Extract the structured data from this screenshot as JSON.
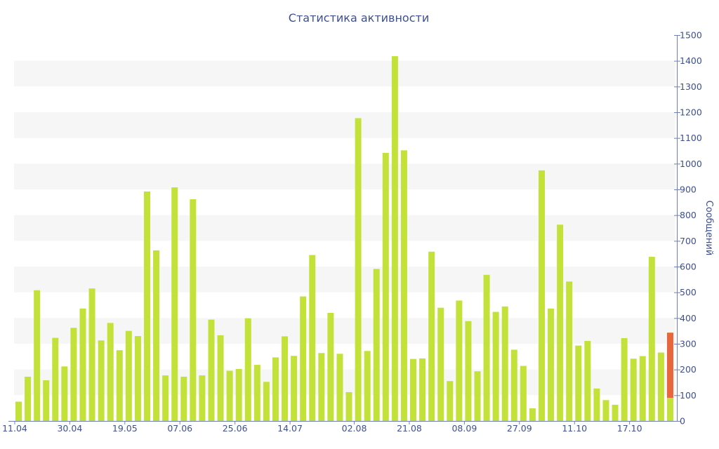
{
  "chart_data": {
    "type": "bar",
    "title": "Статистика активности",
    "ylabel": "Сообщений",
    "xlabel": "",
    "ylim": [
      0,
      1500
    ],
    "y_ticks": [
      0,
      100,
      200,
      300,
      400,
      500,
      600,
      700,
      800,
      900,
      1000,
      1100,
      1200,
      1300,
      1400,
      1500
    ],
    "y_axis_side": "right",
    "start_date": "11.04",
    "x_tick_labels": [
      "11.04",
      "30.04",
      "19.05",
      "07.06",
      "25.06",
      "14.07",
      "02.08",
      "21.08",
      "08.09",
      "27.09",
      "11.10",
      "17.10"
    ],
    "x_tick_bar_index": [
      0,
      6,
      12,
      18,
      24,
      30,
      37,
      43,
      49,
      55,
      61,
      67
    ],
    "values": [
      75,
      172,
      508,
      158,
      323,
      212,
      362,
      437,
      515,
      313,
      381,
      275,
      350,
      330,
      892,
      663,
      177,
      908,
      172,
      862,
      177,
      394,
      333,
      195,
      202,
      399,
      218,
      152,
      247,
      329,
      253,
      484,
      645,
      264,
      420,
      261,
      112,
      1177,
      272,
      591,
      1042,
      1418,
      1052,
      241,
      243,
      658,
      440,
      155,
      468,
      388,
      193,
      568,
      424,
      445,
      277,
      214,
      49,
      974,
      437,
      763,
      542,
      293,
      311,
      126,
      81,
      63,
      322,
      242,
      252,
      638,
      266,
      343
    ],
    "highlight": {
      "index": 71,
      "value": 343,
      "from": 90,
      "color": "#e8663d"
    },
    "colors": {
      "bar": "#c2e23a",
      "band": "#f6f6f6",
      "axis": "#6e7fb7",
      "text": "#3d4f8f"
    },
    "grid": "alternating-bands"
  }
}
